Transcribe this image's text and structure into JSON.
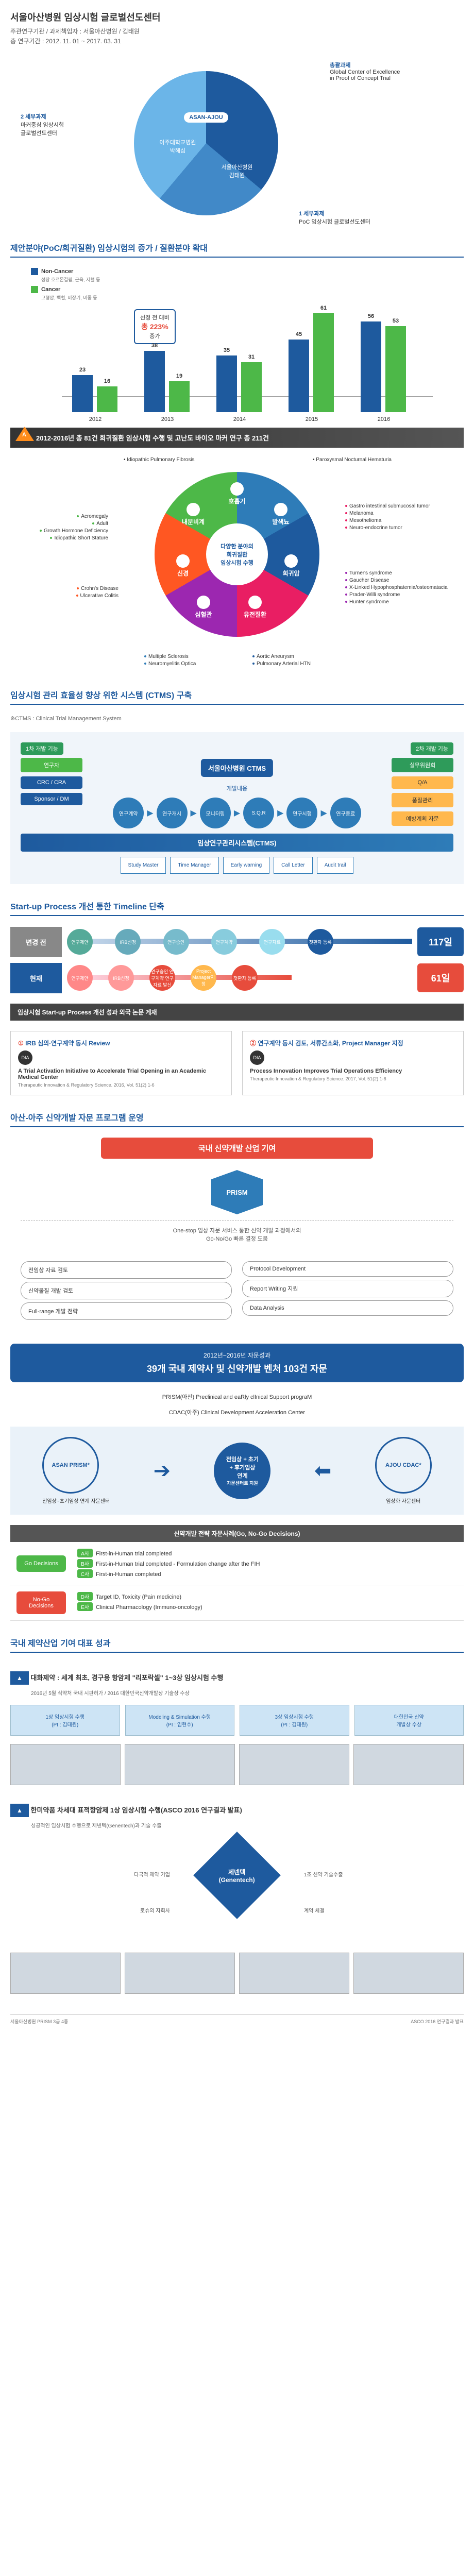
{
  "header": {
    "title": "서울아산병원 임상시험 글로벌선도센터",
    "line1": "주관연구기관 / 과제책임자 : 서울아산병원 / 김태원",
    "line2": "총 연구기간 : 2012. 11. 01 ~ 2017. 03. 31"
  },
  "pie": {
    "center_logo": "ASAN-AJOU",
    "seg1_org": "아주대학교병원",
    "seg1_pi": "박해심",
    "seg2_org": "서울아산병원",
    "seg2_pi": "김태원",
    "lbl_right_t": "총괄과제",
    "lbl_right_s": "Global Center of Excellence\nin Proof of Concept Trial",
    "lbl_left_t": "2 세부과제",
    "lbl_left_s": "마커중심 임상시험\n글로벌선도센터",
    "lbl_btm_t": "1 세부과제",
    "lbl_btm_s": "PoC 임상시험 글로벌선도센터"
  },
  "sec2": {
    "title": "제안분야(PoC/희귀질환) 임상시험의 증가 / 질환분야 확대",
    "legend_nc": "Non-Cancer",
    "legend_nc_sub": "성장 호르몬결핍, 근육, 저혈 등",
    "legend_c": "Cancer",
    "legend_c_sub": "고형암, 백혈, 비장기, 비종 등",
    "growth_lbl": "선정 전 대비",
    "growth_pct": "총 223%",
    "growth_suf": "증가",
    "years": [
      "2012",
      "2013",
      "2014",
      "2015",
      "2016"
    ],
    "nc": [
      23,
      38,
      35,
      45,
      56
    ],
    "c": [
      16,
      19,
      31,
      61,
      53
    ],
    "ymax": 70,
    "colors": {
      "nc": "#1e5a9e",
      "c": "#4db848"
    }
  },
  "tri1": "2012-2016년 총 81건 희귀질환 임상시험 수행 및 고난도 바이오 마커 연구 총 211건",
  "wheel": {
    "center1": "다양한 분야의",
    "center2": "희귀질환",
    "center3": "임상시험 수행",
    "segs": [
      "호흡기",
      "발색뇨",
      "희귀암",
      "유전질환",
      "심혈관",
      "신경",
      "내분비계"
    ],
    "top_l": "• Idiopathic Pulmonary Fibrosis",
    "top_r": "• Paroxysmal Nocturnal Hematuria",
    "right": [
      "Gastro intestinal submucosal tumor",
      "Melanoma",
      "Mesothelioma",
      "Neuro-endocrine tumor"
    ],
    "right2": [
      "Turner's syndrome",
      "Gaucher Disease",
      "X-Linked Hypophosphatemia/osteomatacia",
      "Prader-Willi syndrome",
      "Hunter syndrome"
    ],
    "left1": [
      "Acromegaly",
      "Adult",
      "Growth Hormone Deficiency",
      "Idiopathic Short Stature"
    ],
    "left2": [
      "Crohn's Disease",
      "Ulcerative Colitis"
    ],
    "btm_l": [
      "Multiple Sclerosis",
      "Neuromyelitis Optica"
    ],
    "btm_r": [
      "Aortic Aneurysm",
      "Pulmonary Arterial HTN"
    ]
  },
  "ctms": {
    "title": "임상시험 관리 효율성 향상 위한 시스템 (CTMS) 구축",
    "sub": "※CTMS : Clinical Trial Management System",
    "box_title": "서울아산병원 CTMS",
    "tab_l": "1차 개발 기능",
    "tab_r": "2차 개발 기능",
    "flow_top": "개발내용",
    "flow": [
      "연구계약",
      "연구개시",
      "모니터링",
      "S.Q.R",
      "연구시험",
      "연구종료"
    ],
    "sysbar": "임상연구관리시스템(CTMS)",
    "subsys": [
      "Study Master",
      "Time Manager",
      "Early warning",
      "Call Letter",
      "Audit trail"
    ],
    "right_top": "실무위원회",
    "left": [
      "연구자",
      "CRC / CRA",
      "Sponsor / DM"
    ],
    "right": [
      "Q/A",
      "품질관리",
      "예방계획 자문"
    ]
  },
  "timeline": {
    "title": "Start-up Process 개선 통한 Timeline 단축",
    "row1_lbl": "변경 전",
    "row1_bubbles": [
      "연구제안",
      "IRB신청",
      "연구승인",
      "연구계약",
      "연구자료",
      "첫환자 등록"
    ],
    "row1_days": "117일",
    "row2_lbl": "현재",
    "row2_bubbles": [
      "연구제안",
      "IRB신청",
      "연구승인 연구계약 연구자료 발신",
      "Project Manager지정",
      "첫환자 등록"
    ],
    "row2_days": "61일",
    "subbar": "임상시험 Start-up Process 개선 성과 외국 논문 게재",
    "card1_h": "IRB 심의·연구계약 동시 Review",
    "card1_t": "A Trial Activation Initiative to Accelerate Trial Opening in an Academic Medical Center",
    "card1_s": "Therapeutic Innovation & Regulatory Science. 2016, Vol. 51(2) 1-6",
    "card2_h": "연구계약 동시 검토, 서류간소화, Project Manager 지정",
    "card2_t": "Process Innovation Improves Trial Operations Efficiency",
    "card2_s": "Therapeutic Innovation & Regulatory Science. 2017, Vol. 51(2) 1-6",
    "dia": "DIA"
  },
  "prism": {
    "title": "아산-아주 신약개발 자문 프로그램 운영",
    "banner": "국내 신약개발 산업 기여",
    "hex": "PRISM",
    "desc": "One-stop 임상 자문 서비스 통한 신약 개발 과정에서의\nGo-No/Go 빠른 결정 도움",
    "left": [
      "전임상 자료 검토",
      "신약물질 개발 검토",
      "Full-range 개발 전략"
    ],
    "right": [
      "Protocol Development",
      "Report Writing 지원",
      "Data Analysis"
    ],
    "result_sm": "2012년~2016년 자문성과",
    "result_lg": "39개 국내 제약사 및 신약개발 벤처 103건 자문",
    "acr1_l": "PRISM(아산)",
    "acr1_r": "Preclinical and eaRly clInical Support prograM",
    "acr2_l": "CDAC(아주)",
    "acr2_r": "Clinical Development Acceleration Center",
    "org_l": "ASAN PRISM*",
    "org_l_sub": "전임상~초기임상 연계 자문센터",
    "org_m1": "전임상 + 초기",
    "org_m2": "+ 후기임상",
    "org_m3": "연계",
    "org_m4": "자문센터로 지원",
    "org_r": "AJOU CDAC*",
    "org_r_sub": "임상화 자문센터"
  },
  "decisions": {
    "title": "신약개발 전략 자문사례(Go, No-Go Decisions)",
    "go_lbl": "Go Decisions",
    "go": [
      {
        "t": "A사",
        "d": "First-in-Human trial completed"
      },
      {
        "t": "B사",
        "d": "First-in-Human trial completed - Formulation change after the FIH"
      },
      {
        "t": "C사",
        "d": "First-in-Human completed"
      }
    ],
    "nogo_lbl": "No-Go Decisions",
    "nogo": [
      {
        "t": "D사",
        "d": "Target ID, Toxicity (Pain medicine)"
      },
      {
        "t": "E사",
        "d": "Clinical Pharmacology (Immuno-oncology)"
      }
    ]
  },
  "final": {
    "title": "국내 제약산업 기여 대표 성과",
    "note1_h": "대화제약 : 세계 최초, 경구용 항암제 \"리포락셀\" 1~3상 임상시험 수행",
    "note1_s": "2016년 5월 식약처 국내 시판허가 / 2016 대한민국신약개발상 기술상 수상",
    "steps": [
      "1상 임상시험 수행\n(PI : 김태원)",
      "Modeling & Simulation 수행\n(PI : 임현수)",
      "3상 임상시험 수행\n(PI : 김태원)",
      "대한민국 신약\n개발상 수상"
    ],
    "note2_h": "한미약품 차세대 표적항암제 1상 임상시험 수행(ASCO 2016 연구결과 발표)",
    "note2_s": "성공적인 임상시험 수행으로 제넨텍(Genentech)과 기술 수출",
    "rh_center": "제넨텍\n(Genentech)",
    "rh_l1": "다국적 제약 기업",
    "rh_l2": "로슈의 자회사",
    "rh_r1": "1조 신약 기술수출",
    "rh_r2": "계약 체결",
    "foot_l": "서울아산병원 PRISM 3급 4종",
    "foot_r": "ASCO 2016 연구결과 발표"
  }
}
